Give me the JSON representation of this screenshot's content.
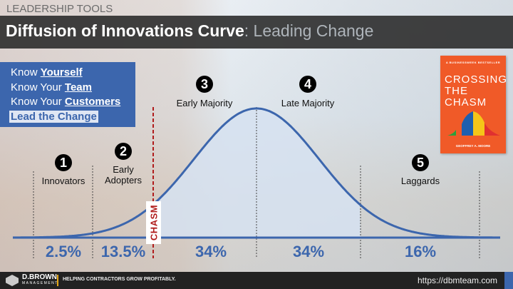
{
  "header": {
    "kicker": "LEADERSHIP TOOLS",
    "title": "Diffusion of Innovations Curve",
    "subtitle": ": Leading Change"
  },
  "sidebar": {
    "items": [
      {
        "prefix": "Know ",
        "emphasis": "Yourself"
      },
      {
        "prefix": "Know Your ",
        "emphasis": "Team"
      },
      {
        "prefix": "Know Your ",
        "emphasis": "Customers"
      },
      {
        "label": "Lead the Change"
      }
    ]
  },
  "book": {
    "tagline": "A BUSINESSWEEK BESTSELLER",
    "title_lines": [
      "CROSSING",
      "THE",
      "CHASM"
    ],
    "author": "GEOFFREY A. MOORE",
    "color": "#f05a28"
  },
  "segments": [
    {
      "number": "1",
      "label": "Innovators",
      "percent": "2.5%"
    },
    {
      "number": "2",
      "label": "Early Adopters",
      "percent": "13.5%"
    },
    {
      "number": "3",
      "label": "Early Majority",
      "percent": "34%"
    },
    {
      "number": "4",
      "label": "Late Majority",
      "percent": "34%"
    },
    {
      "number": "5",
      "label": "Laggards",
      "percent": "16%"
    }
  ],
  "chasm_label": "CHASM",
  "colors": {
    "curve": "#3c66ad",
    "chasm": "#b01c1c",
    "fill": "#d6e2f1"
  },
  "footer": {
    "brand": "D.BROWN",
    "brand_sub": "MANAGEMENT",
    "tagline": "HELPING CONTRACTORS GROW PROFITABLY.",
    "url": "https://dbmteam.com"
  }
}
